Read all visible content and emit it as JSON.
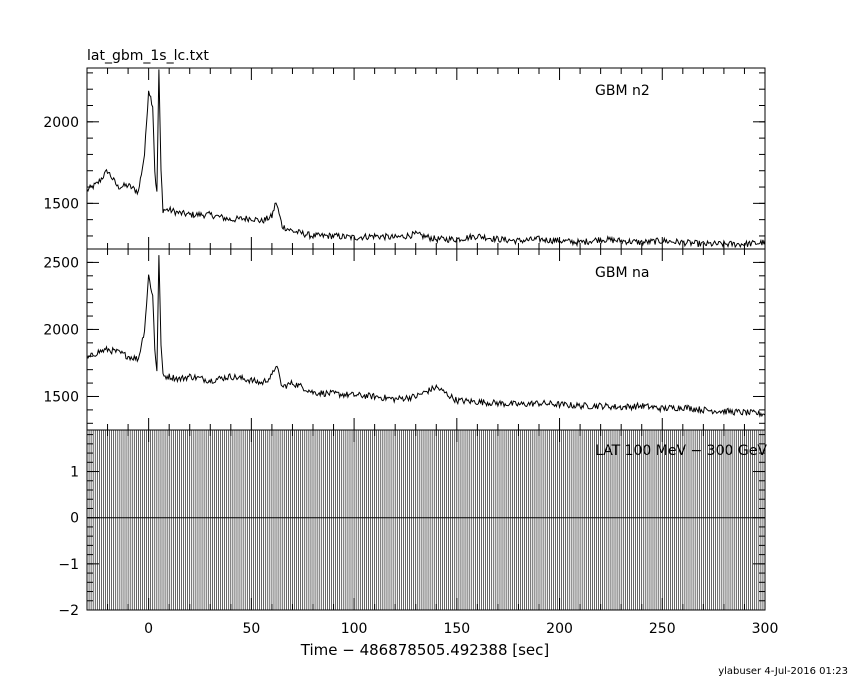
{
  "title": "lat_gbm_1s_lc.txt",
  "xlabel": "Time − 486878505.492388 [sec]",
  "footer": "ylabuser   4-Jul-2016 01:23",
  "chart_data": [
    {
      "type": "line",
      "name": "GBM n2",
      "xlim": [
        -30,
        300
      ],
      "ylim": [
        1220,
        2330
      ],
      "yticks": [
        "1500",
        "2000"
      ],
      "x": [
        -30,
        -25,
        -20,
        -15,
        -10,
        -5,
        -2,
        0,
        2,
        3,
        4,
        5,
        6,
        7,
        10,
        15,
        20,
        30,
        40,
        50,
        55,
        60,
        62,
        65,
        70,
        80,
        90,
        100,
        110,
        120,
        130,
        140,
        150,
        160,
        170,
        180,
        190,
        200,
        210,
        220,
        230,
        240,
        250,
        260,
        270,
        280,
        290,
        300
      ],
      "values": [
        1580,
        1620,
        1700,
        1600,
        1610,
        1570,
        1800,
        2200,
        2100,
        1700,
        1560,
        2320,
        1700,
        1460,
        1460,
        1440,
        1430,
        1430,
        1400,
        1410,
        1390,
        1420,
        1510,
        1360,
        1330,
        1300,
        1300,
        1290,
        1300,
        1290,
        1310,
        1280,
        1280,
        1300,
        1280,
        1270,
        1280,
        1270,
        1260,
        1280,
        1270,
        1260,
        1270,
        1260,
        1250,
        1250,
        1250,
        1260
      ]
    },
    {
      "type": "line",
      "name": "GBM na",
      "xlim": [
        -30,
        300
      ],
      "ylim": [
        1250,
        2600
      ],
      "yticks": [
        "1500",
        "2000",
        "2500"
      ],
      "x": [
        -30,
        -25,
        -20,
        -15,
        -10,
        -5,
        -2,
        0,
        2,
        3,
        4,
        5,
        6,
        7,
        10,
        15,
        20,
        30,
        40,
        50,
        55,
        60,
        62,
        65,
        70,
        75,
        80,
        90,
        100,
        110,
        120,
        130,
        140,
        150,
        160,
        170,
        180,
        190,
        200,
        210,
        220,
        230,
        240,
        250,
        260,
        270,
        280,
        290,
        300
      ],
      "values": [
        1780,
        1830,
        1850,
        1830,
        1800,
        1780,
        2000,
        2400,
        2250,
        1850,
        1700,
        2550,
        1900,
        1650,
        1650,
        1630,
        1650,
        1620,
        1650,
        1620,
        1600,
        1650,
        1740,
        1570,
        1600,
        1570,
        1530,
        1520,
        1510,
        1500,
        1480,
        1500,
        1570,
        1470,
        1460,
        1450,
        1440,
        1450,
        1440,
        1430,
        1430,
        1420,
        1430,
        1410,
        1420,
        1400,
        1390,
        1380,
        1370
      ]
    },
    {
      "type": "line",
      "name": "LAT 100 MeV − 300 GeV",
      "xlim": [
        -30,
        300
      ],
      "ylim": [
        -2,
        1.9
      ],
      "yticks": [
        "−2",
        "−1",
        "0",
        "1"
      ],
      "x": [
        -30,
        300
      ],
      "values": [
        0,
        0
      ]
    }
  ],
  "xticks": [
    "0",
    "50",
    "100",
    "150",
    "200",
    "250",
    "300"
  ]
}
